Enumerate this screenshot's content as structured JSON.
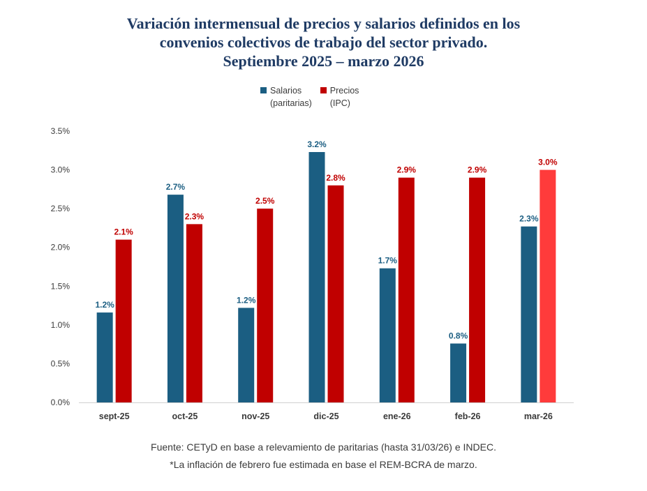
{
  "title_lines": [
    "Variación intermensual de precios y salarios definidos en los",
    "convenios colectivos de trabajo del sector privado.",
    "Septiembre 2025 – marzo 2026"
  ],
  "legend": [
    {
      "line1": "Salarios",
      "line2": "(paritarias)",
      "color": "#1b5e82"
    },
    {
      "line1": "Precios",
      "line2": "(IPC)",
      "color": "#c00000"
    }
  ],
  "chart_data": {
    "type": "bar",
    "categories": [
      "sept-25",
      "oct-25",
      "nov-25",
      "dic-25",
      "ene-26",
      "feb-26",
      "mar-26"
    ],
    "series": [
      {
        "name": "Salarios (paritarias)",
        "color": "#1b5e82",
        "values": [
          1.16,
          2.68,
          1.22,
          3.23,
          1.73,
          0.76,
          2.27
        ],
        "labels": [
          "1.2%",
          "2.7%",
          "1.2%",
          "3.2%",
          "1.7%",
          "0.8%",
          "2.3%"
        ]
      },
      {
        "name": "Precios (IPC)",
        "color": "#c00000",
        "highlight_color": "#ff3b3b",
        "highlight_index": 6,
        "values": [
          2.1,
          2.3,
          2.5,
          2.8,
          2.9,
          2.9,
          3.0
        ],
        "labels": [
          "2.1%",
          "2.3%",
          "2.5%",
          "2.8%",
          "2.9%",
          "2.9%",
          "3.0%"
        ]
      }
    ],
    "ylim": [
      0,
      3.5
    ],
    "yticks": [
      0,
      0.5,
      1.0,
      1.5,
      2.0,
      2.5,
      3.0,
      3.5
    ],
    "ytick_labels": [
      "0.0%",
      "0.5%",
      "1.0%",
      "1.5%",
      "2.0%",
      "2.5%",
      "3.0%",
      "3.5%"
    ],
    "grid": false,
    "legend_position": "top-center"
  },
  "source_lines": [
    "Fuente: CETyD en base a relevamiento de paritarias (hasta 31/03/26) e INDEC.",
    "*La inflación de febrero fue estimada en base el REM-BCRA de marzo."
  ]
}
